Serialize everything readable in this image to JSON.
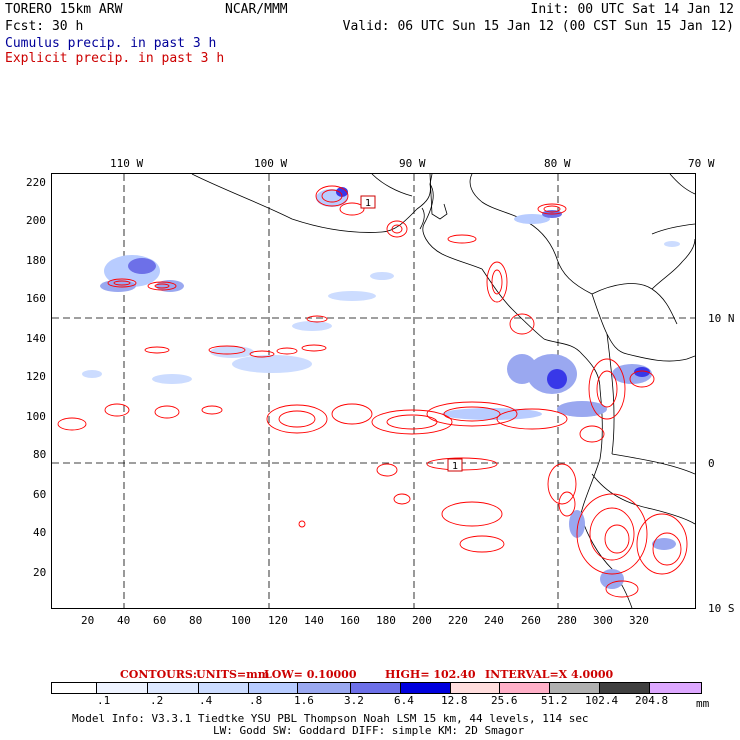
{
  "header": {
    "model": "TORERO  15km ARW",
    "org": "NCAR/MMM",
    "init": "Init: 00 UTC Sat 14 Jan 12",
    "fcst": "Fcst:   30 h",
    "valid": "Valid: 06 UTC Sun 15 Jan 12 (00 CST Sun 15 Jan 12)",
    "field1": "Cumulus precip. in past 3 h",
    "field2": "Explicit precip. in past 3 h",
    "field1_color": "#000099",
    "field2_color": "#cc0000"
  },
  "map": {
    "lon_labels": [
      "110 W",
      "100 W",
      "90 W",
      "80 W",
      "70 W"
    ],
    "lat_labels": [
      "10 N",
      "0",
      "10 S"
    ],
    "y_ticks": [
      "220",
      "200",
      "180",
      "160",
      "140",
      "120",
      "100",
      "80",
      "60",
      "40",
      "20"
    ],
    "x_ticks": [
      "20",
      "40",
      "60",
      "80",
      "100",
      "120",
      "140",
      "160",
      "180",
      "200",
      "220",
      "240",
      "260",
      "280",
      "300",
      "320"
    ],
    "markers": [
      "1",
      "1"
    ]
  },
  "contours": {
    "label": "CONTOURS:",
    "units": "UNITS=mm",
    "low": "LOW= 0.10000",
    "high": "HIGH=  102.40",
    "interval": "INTERVAL=X  4.0000"
  },
  "colorbar": {
    "colors": [
      "#ffffff",
      "#eef3ff",
      "#dde8ff",
      "#ccdcff",
      "#b8ccff",
      "#9aa8f0",
      "#6d70e8",
      "#3838e8",
      "#0000dd",
      "#ffdddd",
      "#ffb0c8",
      "#ff80b0",
      "#b0b0b0",
      "#404040",
      "#dda8ff"
    ],
    "labels": [
      ".1",
      ".2",
      ".4",
      ".8",
      "1.6",
      "3.2",
      "6.4",
      "12.8",
      "25.6",
      "51.2",
      "102.4",
      "204.8"
    ],
    "unit": "mm"
  },
  "footer": {
    "line1": "Model Info: V3.3.1    Tiedtke YSU PBL  Thompson    Noah LSM  15 km,   44 levels,  114 sec",
    "line2": "LW: Godd SW: Goddard DIFF: simple KM: 2D Smagor"
  }
}
